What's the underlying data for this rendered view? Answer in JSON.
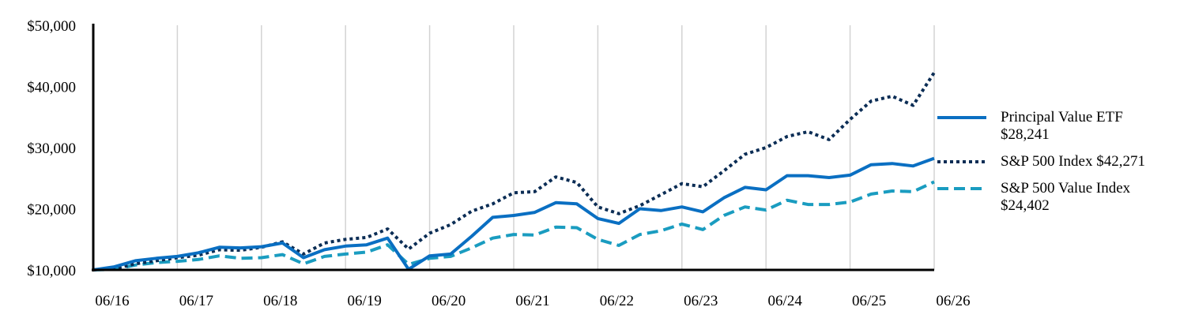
{
  "chart_data": {
    "type": "line",
    "title": "",
    "xlabel": "",
    "ylabel": "",
    "ylim": [
      10000,
      50000
    ],
    "yticks": [
      10000,
      20000,
      30000,
      40000,
      50000
    ],
    "ytick_labels": [
      "$10,000",
      "$20,000",
      "$30,000",
      "$40,000",
      "$50,000"
    ],
    "xlim": [
      0,
      40
    ],
    "xticks": [
      0,
      4,
      8,
      12,
      16,
      20,
      24,
      28,
      32,
      36,
      40
    ],
    "xtick_labels": [
      "06/16",
      "06/17",
      "06/18",
      "06/19",
      "06/20",
      "06/21",
      "06/22",
      "06/23",
      "06/24",
      "06/25",
      "06/26"
    ],
    "grid": "vertical",
    "legend_position": "right",
    "x": [
      0,
      1,
      2,
      3,
      4,
      5,
      6,
      7,
      8,
      9,
      10,
      11,
      12,
      13,
      14,
      15,
      16,
      17,
      18,
      19,
      20,
      21,
      22,
      23,
      24,
      25,
      26,
      27,
      28,
      29,
      30,
      31,
      32,
      33,
      34,
      35,
      36,
      37,
      38,
      39,
      40
    ],
    "series": [
      {
        "name": "Principal Value ETF",
        "end_label": "$28,241",
        "color": "#0a6fc2",
        "style": "solid",
        "values": [
          10000,
          10500,
          11500,
          11900,
          12200,
          12800,
          13700,
          13600,
          13800,
          14400,
          12000,
          13300,
          13900,
          14100,
          15200,
          10100,
          12300,
          12600,
          15500,
          18600,
          18900,
          19400,
          21000,
          20800,
          18400,
          17600,
          20000,
          19700,
          20300,
          19500,
          21800,
          23500,
          23100,
          25400,
          25400,
          25100,
          25500,
          27200,
          27400,
          27000,
          28241
        ]
      },
      {
        "name": "S&P 500 Index",
        "end_label": "$42,271",
        "color": "#0b2d55",
        "style": "dotted",
        "values": [
          10000,
          10200,
          11000,
          11500,
          12000,
          12400,
          13300,
          13200,
          13700,
          14600,
          12600,
          14400,
          15000,
          15300,
          16700,
          13400,
          16000,
          17400,
          19600,
          20800,
          22600,
          22800,
          25200,
          24300,
          20300,
          19200,
          20500,
          22300,
          24100,
          23600,
          26200,
          28900,
          30000,
          31800,
          32600,
          31300,
          34600,
          37600,
          38400,
          36900,
          42271
        ]
      },
      {
        "name": "S&P 500 Value Index",
        "end_label": "$24,402",
        "color": "#1a9cc0",
        "style": "dashed",
        "values": [
          10000,
          10100,
          10800,
          11200,
          11400,
          11700,
          12300,
          11900,
          12000,
          12500,
          11000,
          12200,
          12600,
          12900,
          14100,
          10900,
          11900,
          12200,
          13600,
          15200,
          15800,
          15700,
          17000,
          16900,
          15000,
          14000,
          15800,
          16400,
          17500,
          16600,
          18900,
          20300,
          19800,
          21400,
          20700,
          20700,
          21100,
          22400,
          22900,
          22800,
          24402
        ]
      }
    ]
  }
}
